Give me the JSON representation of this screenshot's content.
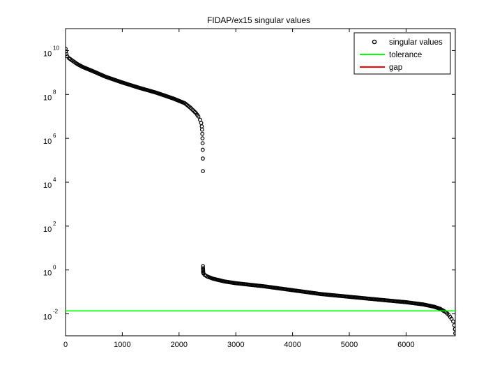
{
  "chart_data": {
    "type": "scatter",
    "title": "FIDAP/ex15 singular values",
    "xlabel": "",
    "ylabel": "",
    "xlim": [
      0,
      6867
    ],
    "ylim_log10": [
      -3,
      11
    ],
    "yscale": "log",
    "grid": false,
    "legend_position": "top-right",
    "x_ticks": [
      {
        "value": 0,
        "label": "0"
      },
      {
        "value": 1000,
        "label": "1000"
      },
      {
        "value": 2000,
        "label": "2000"
      },
      {
        "value": 3000,
        "label": "3000"
      },
      {
        "value": 4000,
        "label": "4000"
      },
      {
        "value": 5000,
        "label": "5000"
      },
      {
        "value": 6000,
        "label": "6000"
      }
    ],
    "y_ticks": [
      {
        "exp": -2,
        "base": "10",
        "sup": "-2"
      },
      {
        "exp": 0,
        "base": "10",
        "sup": "0"
      },
      {
        "exp": 2,
        "base": "10",
        "sup": "2"
      },
      {
        "exp": 4,
        "base": "10",
        "sup": "4"
      },
      {
        "exp": 6,
        "base": "10",
        "sup": "6"
      },
      {
        "exp": 8,
        "base": "10",
        "sup": "8"
      },
      {
        "exp": 10,
        "base": "10",
        "sup": "10"
      }
    ],
    "legend": [
      {
        "label": "singular values",
        "marker": "circle",
        "color": "#000000"
      },
      {
        "label": "tolerance",
        "marker": "line",
        "color": "#00ff00"
      },
      {
        "label": "gap",
        "marker": "line",
        "color": "#ff0000"
      }
    ],
    "series": [
      {
        "name": "singular values",
        "kind": "markers",
        "color": "#000000",
        "x": [
          1,
          5,
          15,
          30,
          60,
          100,
          200,
          300,
          500,
          700,
          1000,
          1300,
          1600,
          1900,
          2100,
          2200,
          2300,
          2340,
          2370,
          2390,
          2400,
          2405,
          2410,
          2413,
          2415,
          2417,
          2419,
          2420,
          2421,
          2422,
          2423,
          2424,
          2425,
          2426,
          2430,
          2450,
          2500,
          2600,
          2800,
          3000,
          3500,
          4000,
          4500,
          5000,
          5500,
          6000,
          6300,
          6500,
          6600,
          6700,
          6750,
          6800,
          6830,
          6850,
          6860,
          6867
        ],
        "y": [
          12000000000.0,
          9000000000.0,
          7000000000.0,
          5500000000.0,
          4500000000.0,
          3800000000.0,
          2500000000.0,
          1800000000.0,
          1100000000.0,
          650000000.0,
          350000000.0,
          200000000.0,
          120000000.0,
          65000000.0,
          40000000.0,
          25000000.0,
          14000000.0,
          10000000.0,
          7000000.0,
          5000000.0,
          3500000.0,
          2500000.0,
          1600000.0,
          1000000.0,
          600000.0,
          300000.0,
          120000.0,
          32000.0,
          1.5,
          1.2,
          1.0,
          0.9,
          0.8,
          0.75,
          0.7,
          0.6,
          0.5,
          0.4,
          0.3,
          0.25,
          0.18,
          0.12,
          0.08,
          0.06,
          0.045,
          0.034,
          0.027,
          0.021,
          0.017,
          0.012,
          0.009,
          0.006,
          0.0045,
          0.003,
          0.002,
          0.0013
        ]
      },
      {
        "name": "tolerance",
        "kind": "hline",
        "color": "#00ff00",
        "y": 0.0137
      }
    ]
  }
}
